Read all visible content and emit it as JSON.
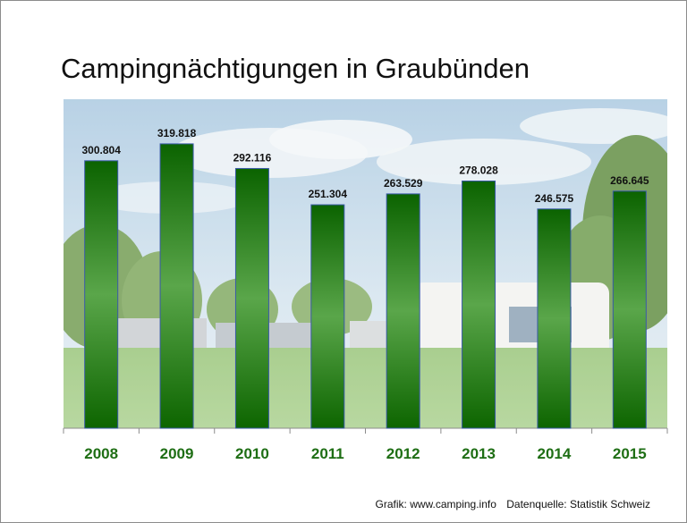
{
  "title": "Campingnächtigungen in Graubünden",
  "footer": {
    "credit": "Grafik: www.camping.info",
    "source": "Datenquelle: Statistik Schweiz"
  },
  "colors": {
    "bar_top": "#0b6300",
    "bar_mid": "#5aa64a",
    "bar_bottom": "#0d6500",
    "bar_edge": "#3a5aa8",
    "tick_label": "#1e6e14",
    "value_label": "#111111",
    "sky": "#c9dbe8",
    "grass": "#8fbf6c"
  },
  "chart_data": {
    "type": "bar",
    "categories": [
      "2008",
      "2009",
      "2010",
      "2011",
      "2012",
      "2013",
      "2014",
      "2015"
    ],
    "values": [
      300804,
      319818,
      292116,
      251304,
      263529,
      278028,
      246575,
      266645
    ],
    "value_labels": [
      "300.804",
      "319.818",
      "292.116",
      "251.304",
      "263.529",
      "278.028",
      "246.575",
      "266.645"
    ],
    "title": "Campingnächtigungen in Graubünden",
    "xlabel": "",
    "ylabel": "",
    "ylim": [
      0,
      370000
    ],
    "grid": false,
    "legend": "none"
  }
}
